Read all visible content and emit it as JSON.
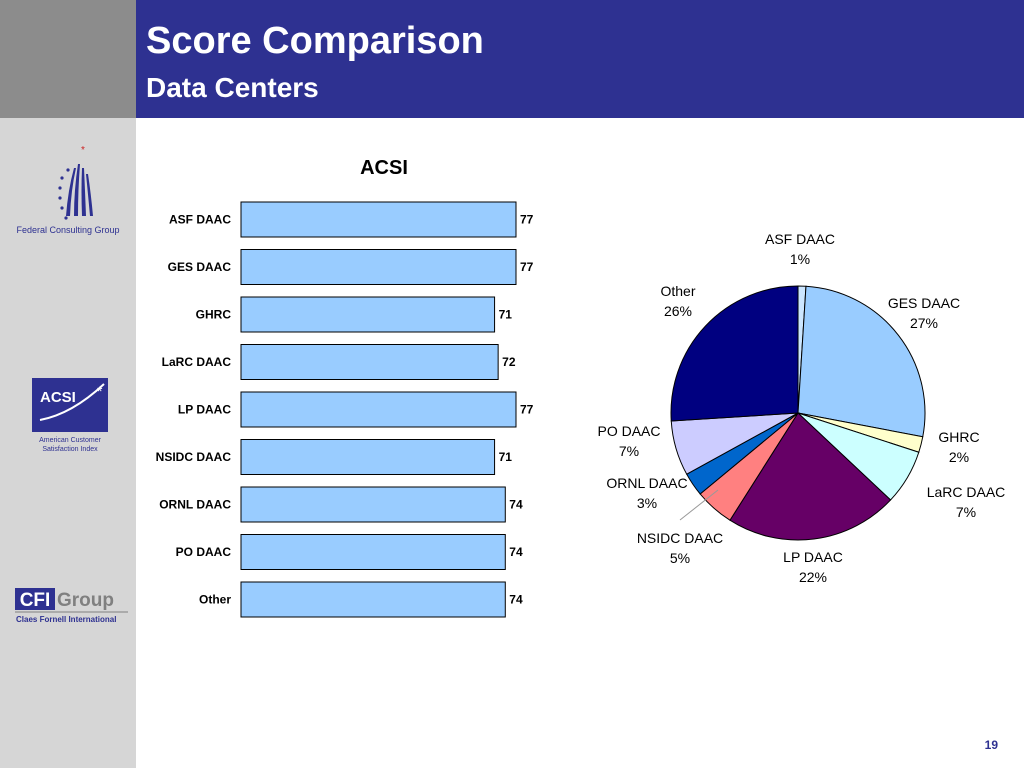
{
  "header": {
    "title": "Score Comparison",
    "subtitle": "Data Centers"
  },
  "sidebar": {
    "fcg_logo_text": "Federal Consulting Group",
    "acsi_logo_text": "ACSI",
    "acsi_logo_caption_1": "American Customer",
    "acsi_logo_caption_2": "Satisfaction Index",
    "cfi_logo_text_1": "CFI",
    "cfi_logo_text_2": "Group",
    "cfi_logo_subtext": "Claes Fornell International"
  },
  "page_number": "19",
  "colors": {
    "header_bg": "#2e3191",
    "bar_fill": "#99ccff",
    "pie": [
      "#cce6ff",
      "#99ccff",
      "#ffffcc",
      "#ccffff",
      "#660066",
      "#ff8080",
      "#0066cc",
      "#ccccff",
      "#000080"
    ]
  },
  "chart_data": [
    {
      "type": "bar",
      "orientation": "horizontal",
      "title": "ACSI",
      "categories": [
        "ASF DAAC",
        "GES DAAC",
        "GHRC",
        "LaRC DAAC",
        "LP DAAC",
        "NSIDC DAAC",
        "ORNL DAAC",
        "PO DAAC",
        "Other"
      ],
      "values": [
        77,
        77,
        71,
        72,
        77,
        71,
        74,
        74,
        74
      ],
      "xlim": [
        0,
        77
      ],
      "grid": false,
      "legend": "none"
    },
    {
      "type": "pie",
      "title": "",
      "labels": [
        "ASF DAAC",
        "GES DAAC",
        "GHRC",
        "LaRC DAAC",
        "LP DAAC",
        "NSIDC DAAC",
        "ORNL DAAC",
        "PO DAAC",
        "Other"
      ],
      "values": [
        1,
        27,
        2,
        7,
        22,
        5,
        3,
        7,
        26
      ],
      "value_labels": [
        "1%",
        "27%",
        "2%",
        "7%",
        "22%",
        "5%",
        "3%",
        "7%",
        "26%"
      ]
    }
  ]
}
